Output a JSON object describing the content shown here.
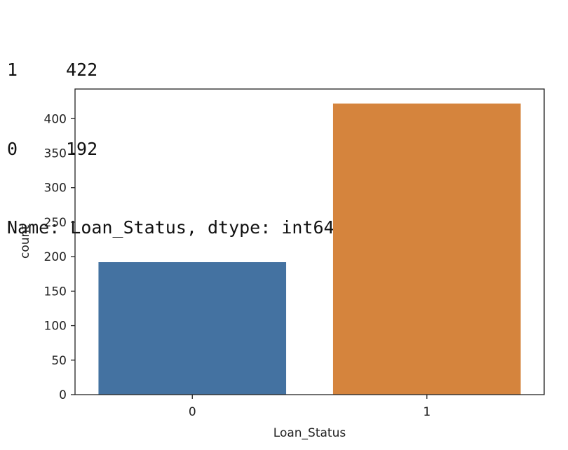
{
  "output": {
    "counts": [
      {
        "key": "1",
        "value": "422"
      },
      {
        "key": "0",
        "value": "192"
      }
    ],
    "name_line": "Name: Loan_Status, dtype: int64"
  },
  "chart_data": {
    "type": "bar",
    "categories": [
      "0",
      "1"
    ],
    "values": [
      192,
      422
    ],
    "colors": [
      "#4472a1",
      "#d5843d"
    ],
    "xlabel": "Loan_Status",
    "ylabel": "count",
    "yticks": [
      0,
      50,
      100,
      150,
      200,
      250,
      300,
      350,
      400
    ],
    "ylim": [
      0,
      443
    ],
    "grid": false
  }
}
